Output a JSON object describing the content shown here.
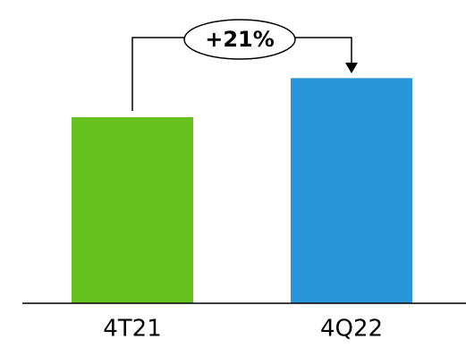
{
  "chart_data": {
    "type": "bar",
    "categories": [
      "4T21",
      "4Q22"
    ],
    "values": [
      100,
      121
    ],
    "colors": [
      "#66c11e",
      "#2896d8"
    ],
    "ylim": [
      0,
      150
    ],
    "annotation": "+21%"
  }
}
